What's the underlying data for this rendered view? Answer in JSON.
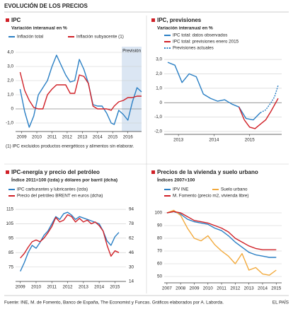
{
  "title": "EVOLUCIÓN DE LOS PRECIOS",
  "source": "Fuente: INE, M. de Fomento, Banco de España, The Economist y Funcas. Gráficos elaborados por A. Laborda.",
  "brand": "EL PAÍS",
  "chart_data": [
    {
      "type": "line",
      "title": "IPC",
      "subtitle": "Variación interanual en %",
      "note": "(1) IPC excluidos productos energéticos y alimentos sin elaborar.",
      "annotation": "Previsión",
      "shaded_x": [
        2015.6,
        2016.9
      ],
      "x": [
        2008.9,
        2009.2,
        2009.5,
        2009.8,
        2010.1,
        2010.4,
        2010.7,
        2011.0,
        2011.3,
        2011.6,
        2011.9,
        2012.2,
        2012.5,
        2012.8,
        2013.1,
        2013.4,
        2013.7,
        2014.0,
        2014.3,
        2014.6,
        2014.9,
        2015.1,
        2015.4,
        2015.7,
        2016.0,
        2016.3,
        2016.6,
        2016.9
      ],
      "series": [
        {
          "name": "Inflación total",
          "color": "#2a7fc4",
          "values": [
            1.4,
            -0.2,
            -1.3,
            -0.5,
            1.0,
            1.5,
            2.0,
            3.0,
            3.8,
            3.1,
            2.4,
            1.9,
            2.0,
            3.5,
            2.8,
            1.8,
            0.3,
            0.2,
            0.2,
            -0.3,
            -1.0,
            -1.1,
            -0.1,
            -0.4,
            -0.8,
            0.5,
            1.5,
            1.2
          ]
        },
        {
          "name": "Inflación subyacente (1)",
          "color": "#d02027",
          "values": [
            2.6,
            1.3,
            0.6,
            0.1,
            0.0,
            0.0,
            1.0,
            1.4,
            1.7,
            1.7,
            1.7,
            1.1,
            1.1,
            2.4,
            2.3,
            1.8,
            0.2,
            0.0,
            0.0,
            0.0,
            -0.1,
            0.2,
            0.5,
            0.6,
            0.8,
            0.8,
            0.9,
            0.9
          ]
        }
      ],
      "xlim": [
        2008.6,
        2016.9
      ],
      "xticks": [
        2009,
        2010,
        2011,
        2012,
        2013,
        2014,
        2015,
        2016
      ],
      "ylim": [
        -1.6,
        4.4
      ],
      "yticks": [
        {
          "value": -1,
          "label": "-1,0"
        },
        0,
        {
          "value": 1,
          "label": "1,0"
        },
        {
          "value": 2,
          "label": "2,0"
        },
        {
          "value": 3,
          "label": "3,0"
        },
        {
          "value": 4,
          "label": "4,0"
        }
      ],
      "grid": true
    },
    {
      "type": "line",
      "title": "IPC, previsiones",
      "subtitle": "Variación interanual en %",
      "series": [
        {
          "name": "IPC total: datos observados",
          "color": "#2a7fc4",
          "x": [
            2012.7,
            2012.9,
            2013.1,
            2013.3,
            2013.5,
            2013.7,
            2013.9,
            2014.1,
            2014.3,
            2014.5,
            2014.7,
            2014.9,
            2015.1,
            2015.3
          ],
          "values": [
            2.8,
            2.6,
            1.4,
            2.0,
            1.8,
            0.6,
            0.3,
            0.1,
            0.2,
            -0.1,
            -0.3,
            -1.1,
            -1.2,
            -0.7
          ]
        },
        {
          "name": "IPC total: previsiones enero 2015",
          "color": "#d02027",
          "x": [
            2014.7,
            2014.85,
            2015.0,
            2015.15,
            2015.3,
            2015.45,
            2015.6,
            2015.8
          ],
          "values": [
            -0.3,
            -1.2,
            -1.7,
            -1.8,
            -1.5,
            -1.2,
            -0.6,
            0.3
          ]
        },
        {
          "name": "Previsiones actuales",
          "color": "#2a7fc4",
          "dashed": true,
          "x": [
            2015.3,
            2015.45,
            2015.6,
            2015.7,
            2015.8
          ],
          "values": [
            -0.7,
            -0.5,
            0.0,
            0.4,
            1.2
          ]
        }
      ],
      "xlim": [
        2012.6,
        2015.9
      ],
      "xticks": [
        2013,
        2014,
        2015
      ],
      "ylim": [
        -2.2,
        3.2
      ],
      "yticks": [
        {
          "value": -2,
          "label": "-2,0"
        },
        {
          "value": -1,
          "label": "-1,0"
        },
        0,
        {
          "value": 1,
          "label": "1,0"
        },
        {
          "value": 2,
          "label": "2,0"
        },
        {
          "value": 3,
          "label": "3,0"
        }
      ],
      "grid": true
    },
    {
      "type": "line",
      "title": "IPC-energía y precio del petróleo",
      "subtitle": "Índice 2011=100 (izda) y dólares por barril (dcha)",
      "x": [
        2009,
        2009.25,
        2009.5,
        2009.75,
        2010,
        2010.25,
        2010.5,
        2010.75,
        2011,
        2011.25,
        2011.5,
        2011.75,
        2012,
        2012.25,
        2012.5,
        2012.75,
        2013,
        2013.25,
        2013.5,
        2013.75,
        2014,
        2014.25,
        2014.5,
        2014.75,
        2015,
        2015.25
      ],
      "series": [
        {
          "name": "IPC carburantes y lubricantes (izda)",
          "color": "#2a7fc4",
          "values": [
            72,
            78,
            85,
            90,
            88,
            92,
            97,
            100,
            105,
            110,
            108,
            112,
            113,
            111,
            108,
            110,
            109,
            108,
            107,
            106,
            105,
            100,
            93,
            90,
            96,
            99
          ]
        },
        {
          "name": "Precio del petróleo BRENT en euros (dcha)",
          "color": "#d02027",
          "axis": "y2",
          "values": [
            40,
            45,
            52,
            58,
            60,
            58,
            62,
            68,
            75,
            85,
            80,
            82,
            88,
            86,
            80,
            84,
            80,
            82,
            78,
            80,
            76,
            70,
            54,
            42,
            48,
            46
          ]
        }
      ],
      "xlim": [
        2008.7,
        2015.7
      ],
      "xticks": [
        2009,
        2010,
        2011,
        2012,
        2013,
        2014,
        2015
      ],
      "ylim": [
        65,
        117
      ],
      "yticks": [
        75,
        85,
        95,
        105,
        115
      ],
      "y2lim": [
        14,
        97.2
      ],
      "y2ticks": [
        14,
        30,
        46,
        62,
        78,
        94
      ],
      "grid": true
    },
    {
      "type": "line",
      "title": "Precios de la vivienda y suelo urbano",
      "subtitle": "Índices 2007=100",
      "x": [
        2007,
        2007.5,
        2008,
        2008.5,
        2009,
        2009.5,
        2010,
        2010.5,
        2011,
        2011.5,
        2012,
        2012.5,
        2013,
        2013.5,
        2014,
        2014.5,
        2015
      ],
      "series": [
        {
          "name": "IPV INE",
          "color": "#2a7fc4",
          "values": [
            100,
            101,
            99,
            95,
            93,
            92,
            91,
            88,
            86,
            82,
            77,
            73,
            69,
            67,
            66,
            65,
            65
          ]
        },
        {
          "name": "Suelo urbano",
          "color": "#f2a93b",
          "values": [
            100,
            102,
            98,
            88,
            80,
            78,
            82,
            75,
            70,
            66,
            60,
            68,
            55,
            57,
            52,
            51,
            55
          ]
        },
        {
          "name": "M. Fomento (precio m2, vivienda libre)",
          "color": "#d02027",
          "values": [
            100,
            101,
            100,
            97,
            94,
            93,
            92,
            90,
            88,
            85,
            80,
            77,
            74,
            72,
            71,
            71,
            71
          ]
        }
      ],
      "xlim": [
        2006.8,
        2015.4
      ],
      "xticks": [
        2007,
        2008,
        2009,
        2010,
        2011,
        2012,
        2013,
        2014,
        2015
      ],
      "ylim": [
        45,
        105
      ],
      "yticks": [
        50,
        60,
        70,
        80,
        90,
        100
      ],
      "grid": true
    }
  ]
}
